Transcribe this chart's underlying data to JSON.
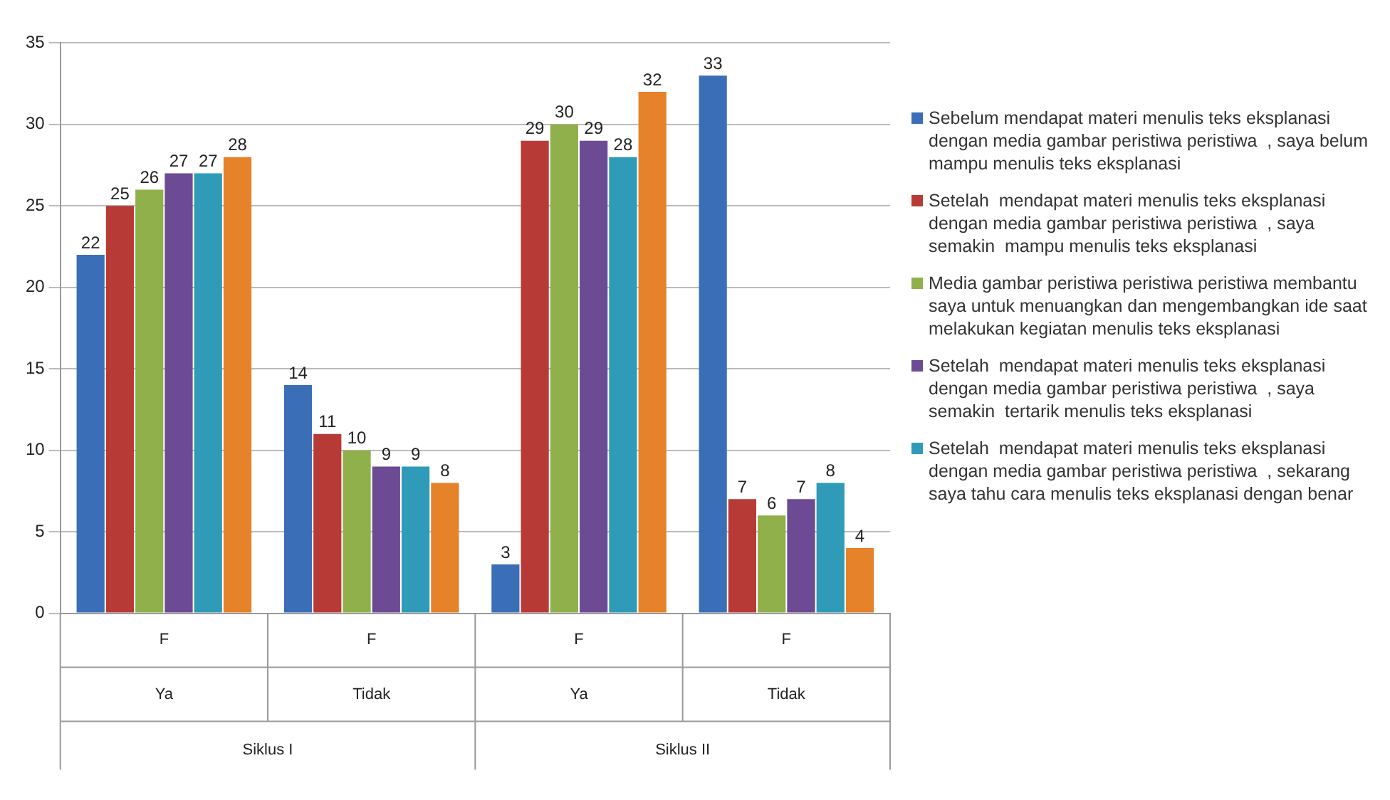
{
  "chart_data": {
    "type": "bar",
    "categories": [
      "F",
      "F",
      "F",
      "F"
    ],
    "series": [
      {
        "name": "Sebelum mendapat materi menulis teks eksplanasi dengan media gambar peristiwa peristiwa  , saya belum mampu menulis teks eksplanasi",
        "color": "#3a6fb8",
        "values": [
          22,
          14,
          3,
          33
        ]
      },
      {
        "name": "Setelah  mendapat materi menulis teks eksplanasi dengan media gambar peristiwa peristiwa  , saya semakin  mampu menulis teks eksplanasi",
        "color": "#b83a36",
        "values": [
          25,
          11,
          29,
          7
        ]
      },
      {
        "name": "Media gambar peristiwa peristiwa peristiwa membantu saya untuk menuangkan dan mengembangkan ide saat melakukan kegiatan menulis teks eksplanasi",
        "color": "#8fb04a",
        "values": [
          26,
          10,
          30,
          6
        ]
      },
      {
        "name": "Setelah  mendapat materi menulis teks eksplanasi dengan media gambar peristiwa peristiwa  , saya semakin  tertarik menulis teks eksplanasi",
        "color": "#6c4b94",
        "values": [
          27,
          9,
          29,
          7
        ]
      },
      {
        "name": "Setelah  mendapat materi menulis teks eksplanasi dengan media gambar peristiwa peristiwa  , sekarang saya tahu cara menulis teks eksplanasi dengan benar",
        "color": "#2f9bb8",
        "values": [
          27,
          9,
          28,
          8
        ]
      },
      {
        "color": "#e5822a",
        "values": [
          28,
          8,
          32,
          4
        ]
      }
    ],
    "annotations": [
      "Ya",
      "Tidak",
      "Ya",
      "Tidak",
      "Siklus I",
      "Siklus II"
    ],
    "ylim": [
      0,
      35
    ],
    "yticks": [
      0,
      5,
      10,
      15,
      20,
      25,
      30,
      35
    ],
    "grid": "y",
    "legend": "right",
    "data_labels": true
  }
}
